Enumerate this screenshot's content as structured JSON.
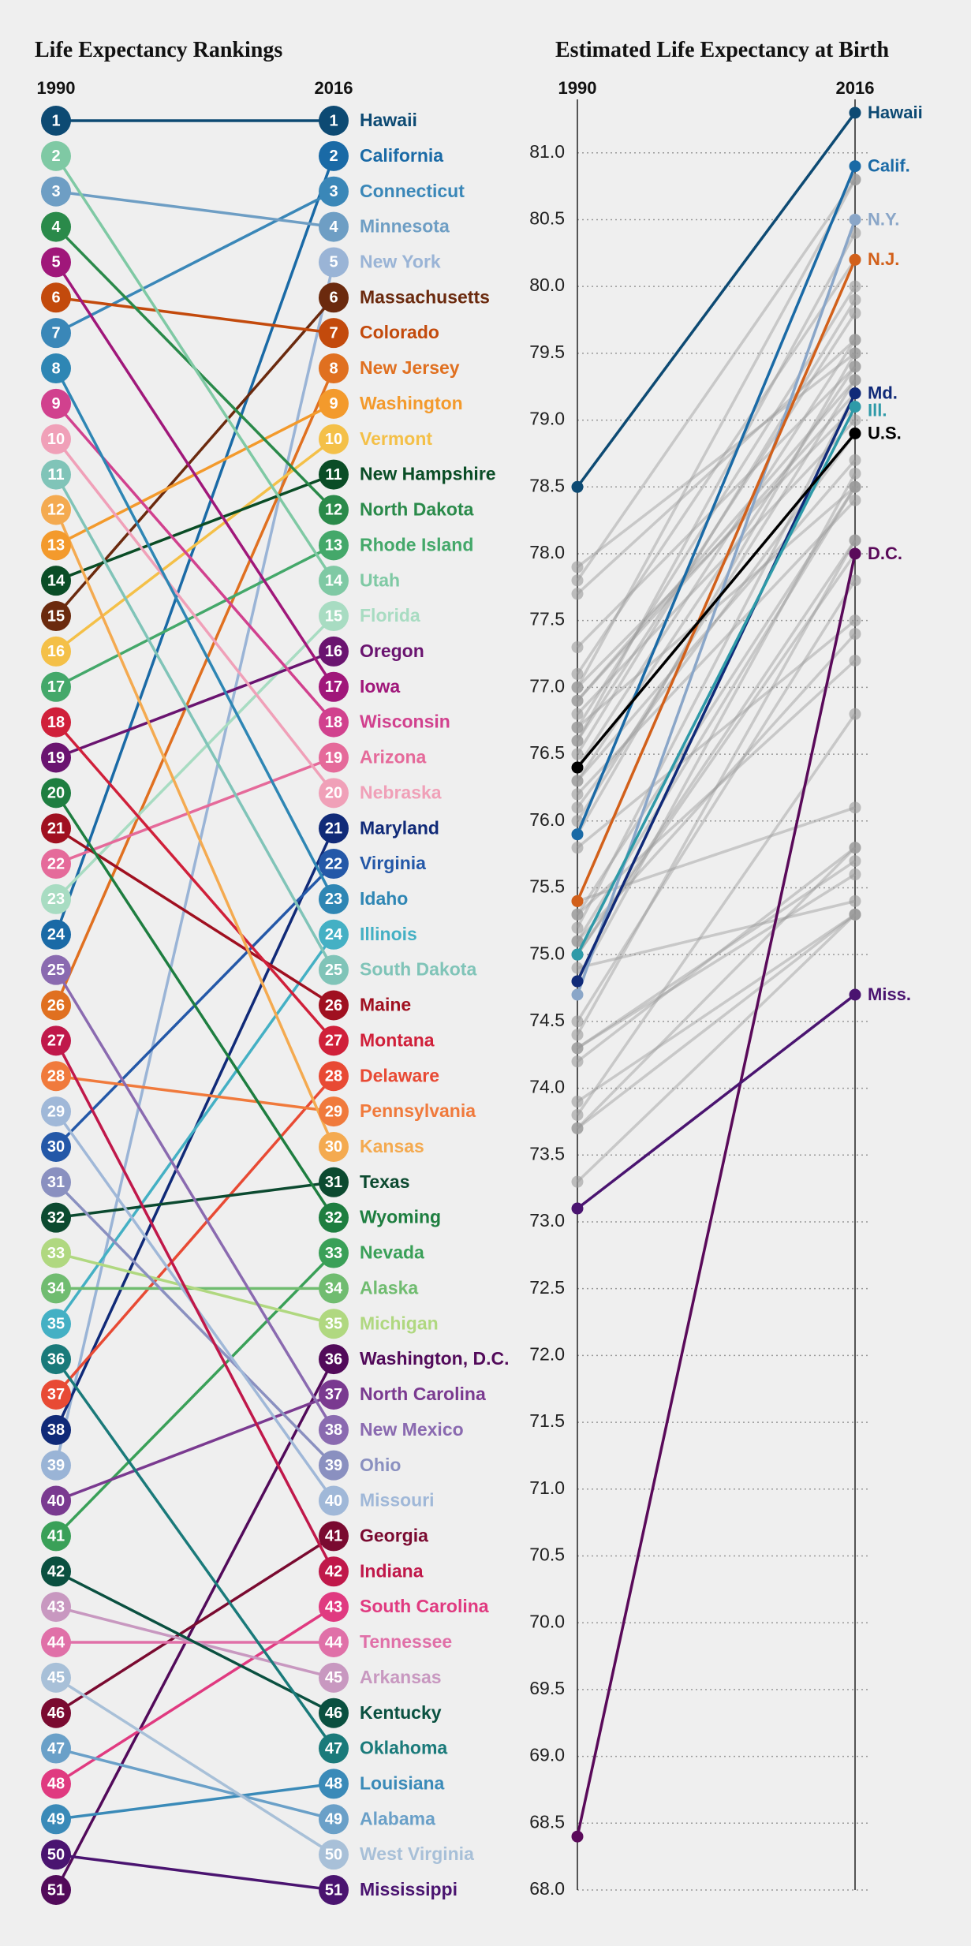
{
  "chart_data": [
    {
      "type": "bump",
      "title": "Life Expectancy Rankings",
      "categories": [
        "1990",
        "2016"
      ],
      "ylim": [
        1,
        51
      ],
      "y_inverted": true,
      "series": [
        {
          "name": "Hawaii",
          "color": "#0d4a73",
          "values": [
            1,
            1
          ]
        },
        {
          "name": "California",
          "color": "#1a6aa6",
          "values": [
            24,
            2
          ]
        },
        {
          "name": "Connecticut",
          "color": "#3a87b8",
          "values": [
            7,
            3
          ]
        },
        {
          "name": "Minnesota",
          "color": "#6e9ec4",
          "values": [
            3,
            4
          ]
        },
        {
          "name": "New York",
          "color": "#9ab4d6",
          "values": [
            39,
            5
          ]
        },
        {
          "name": "Massachusetts",
          "color": "#6b2a0e",
          "values": [
            15,
            6
          ]
        },
        {
          "name": "Colorado",
          "color": "#c34a0c",
          "values": [
            6,
            7
          ]
        },
        {
          "name": "New Jersey",
          "color": "#e07020",
          "values": [
            26,
            8
          ]
        },
        {
          "name": "Washington",
          "color": "#f39a2c",
          "values": [
            13,
            9
          ]
        },
        {
          "name": "Vermont",
          "color": "#f4c048",
          "values": [
            16,
            10
          ]
        },
        {
          "name": "New Hampshire",
          "color": "#0a4d26",
          "values": [
            14,
            11
          ]
        },
        {
          "name": "North Dakota",
          "color": "#2a8a4a",
          "values": [
            4,
            12
          ]
        },
        {
          "name": "Rhode Island",
          "color": "#44a86a",
          "values": [
            17,
            13
          ]
        },
        {
          "name": "Utah",
          "color": "#7fc9a4",
          "values": [
            2,
            14
          ]
        },
        {
          "name": "Florida",
          "color": "#a8dcc2",
          "values": [
            23,
            15
          ]
        },
        {
          "name": "Oregon",
          "color": "#6a1470",
          "values": [
            19,
            16
          ]
        },
        {
          "name": "Iowa",
          "color": "#a0177a",
          "values": [
            5,
            17
          ]
        },
        {
          "name": "Wisconsin",
          "color": "#d1418e",
          "values": [
            9,
            18
          ]
        },
        {
          "name": "Arizona",
          "color": "#e56a9a",
          "values": [
            22,
            19
          ]
        },
        {
          "name": "Nebraska",
          "color": "#f0a0b8",
          "values": [
            10,
            20
          ]
        },
        {
          "name": "Maryland",
          "color": "#102a78",
          "values": [
            38,
            21
          ]
        },
        {
          "name": "Virginia",
          "color": "#2458a8",
          "values": [
            30,
            22
          ]
        },
        {
          "name": "Idaho",
          "color": "#2e86b4",
          "values": [
            8,
            23
          ]
        },
        {
          "name": "Illinois",
          "color": "#44b0c4",
          "values": [
            35,
            24
          ]
        },
        {
          "name": "South Dakota",
          "color": "#80c4b8",
          "values": [
            11,
            25
          ]
        },
        {
          "name": "Maine",
          "color": "#a01020",
          "values": [
            21,
            26
          ]
        },
        {
          "name": "Montana",
          "color": "#d0203a",
          "values": [
            18,
            27
          ]
        },
        {
          "name": "Delaware",
          "color": "#e84a34",
          "values": [
            37,
            28
          ]
        },
        {
          "name": "Pennsylvania",
          "color": "#f07a3c",
          "values": [
            28,
            29
          ]
        },
        {
          "name": "Kansas",
          "color": "#f4aa50",
          "values": [
            12,
            30
          ]
        },
        {
          "name": "Texas",
          "color": "#0c4a30",
          "values": [
            32,
            31
          ]
        },
        {
          "name": "Wyoming",
          "color": "#1e7e40",
          "values": [
            20,
            32
          ]
        },
        {
          "name": "Nevada",
          "color": "#3aa058",
          "values": [
            41,
            33
          ]
        },
        {
          "name": "Alaska",
          "color": "#70bc70",
          "values": [
            34,
            34
          ]
        },
        {
          "name": "Michigan",
          "color": "#b0d880",
          "values": [
            33,
            35
          ]
        },
        {
          "name": "Washington, D.C.",
          "color": "#520a5a",
          "values": [
            51,
            36
          ]
        },
        {
          "name": "North Carolina",
          "color": "#7a3a90",
          "values": [
            40,
            37
          ]
        },
        {
          "name": "New Mexico",
          "color": "#8a6ab0",
          "values": [
            25,
            38
          ]
        },
        {
          "name": "Ohio",
          "color": "#8a90c0",
          "values": [
            31,
            39
          ]
        },
        {
          "name": "Missouri",
          "color": "#a0b8d8",
          "values": [
            29,
            40
          ]
        },
        {
          "name": "Georgia",
          "color": "#7a0a30",
          "values": [
            46,
            41
          ]
        },
        {
          "name": "Indiana",
          "color": "#c0184a",
          "values": [
            27,
            42
          ]
        },
        {
          "name": "South Carolina",
          "color": "#e03a80",
          "values": [
            48,
            43
          ]
        },
        {
          "name": "Tennessee",
          "color": "#e070a8",
          "values": [
            44,
            44
          ]
        },
        {
          "name": "Arkansas",
          "color": "#c898c0",
          "values": [
            43,
            45
          ]
        },
        {
          "name": "Kentucky",
          "color": "#0a5040",
          "values": [
            42,
            46
          ]
        },
        {
          "name": "Oklahoma",
          "color": "#1a7a7a",
          "values": [
            36,
            47
          ]
        },
        {
          "name": "Louisiana",
          "color": "#3a8ab8",
          "values": [
            49,
            48
          ]
        },
        {
          "name": "Alabama",
          "color": "#6aa0c8",
          "values": [
            47,
            49
          ]
        },
        {
          "name": "West Virginia",
          "color": "#a8c0d8",
          "values": [
            45,
            50
          ]
        },
        {
          "name": "Mississippi",
          "color": "#4a1470",
          "values": [
            50,
            51
          ]
        }
      ]
    },
    {
      "type": "slope",
      "title": "Estimated Life Expectancy at Birth",
      "categories": [
        "1990",
        "2016"
      ],
      "ylim": [
        68.0,
        81.4
      ],
      "grid": true,
      "yticks": [
        {
          "value": 68,
          "label": "68.0"
        },
        68.5,
        {
          "value": 69,
          "label": "69.0"
        },
        69.5,
        {
          "value": 70,
          "label": "70.0"
        },
        70.5,
        {
          "value": 71,
          "label": "71.0"
        },
        71.5,
        {
          "value": 72,
          "label": "72.0"
        },
        72.5,
        {
          "value": 73,
          "label": "73.0"
        },
        73.5,
        {
          "value": 74,
          "label": "74.0"
        },
        74.5,
        {
          "value": 75,
          "label": "75.0"
        },
        75.5,
        {
          "value": 76,
          "label": "76.0"
        },
        76.5,
        {
          "value": 77,
          "label": "77.0"
        },
        77.5,
        {
          "value": 78,
          "label": "78.0"
        },
        78.5,
        {
          "value": 79,
          "label": "79.0"
        },
        79.5,
        {
          "value": 80,
          "label": "80.0"
        },
        80.5,
        {
          "value": 81,
          "label": "81.0"
        }
      ],
      "series": [
        {
          "color": "#999999",
          "values": [
            77.0,
            80.8
          ]
        },
        {
          "color": "#999999",
          "values": [
            77.8,
            80.8
          ]
        },
        {
          "color": "#999999",
          "values": [
            76.6,
            80.4
          ]
        },
        {
          "color": "#999999",
          "values": [
            77.1,
            80.2
          ]
        },
        {
          "color": "#999999",
          "values": [
            76.7,
            80.0
          ]
        },
        {
          "color": "#999999",
          "values": [
            76.5,
            79.9
          ]
        },
        {
          "color": "#999999",
          "values": [
            76.6,
            79.8
          ]
        },
        {
          "color": "#999999",
          "values": [
            77.7,
            79.6
          ]
        },
        {
          "color": "#999999",
          "values": [
            76.4,
            79.6
          ]
        },
        {
          "color": "#999999",
          "values": [
            77.9,
            79.5
          ]
        },
        {
          "color": "#999999",
          "values": [
            75.9,
            79.5
          ]
        },
        {
          "color": "#999999",
          "values": [
            76.3,
            79.4
          ]
        },
        {
          "color": "#999999",
          "values": [
            77.3,
            79.4
          ]
        },
        {
          "color": "#999999",
          "values": [
            76.9,
            79.3
          ]
        },
        {
          "color": "#999999",
          "values": [
            76.0,
            79.3
          ]
        },
        {
          "color": "#999999",
          "values": [
            76.9,
            79.2
          ]
        },
        {
          "color": "#999999",
          "values": [
            75.2,
            79.2
          ]
        },
        {
          "color": "#999999",
          "values": [
            77.0,
            79.1
          ]
        },
        {
          "color": "#999999",
          "values": [
            76.8,
            79.0
          ]
        },
        {
          "color": "#999999",
          "values": [
            76.1,
            78.9
          ]
        },
        {
          "color": "#999999",
          "values": [
            76.3,
            78.7
          ]
        },
        {
          "color": "#999999",
          "values": [
            74.8,
            78.6
          ]
        },
        {
          "color": "#999999",
          "values": [
            75.3,
            78.5
          ]
        },
        {
          "color": "#999999",
          "values": [
            76.7,
            78.5
          ]
        },
        {
          "color": "#999999",
          "values": [
            75.1,
            78.5
          ]
        },
        {
          "color": "#999999",
          "values": [
            76.2,
            78.4
          ]
        },
        {
          "color": "#999999",
          "values": [
            74.4,
            78.1
          ]
        },
        {
          "color": "#999999",
          "values": [
            75.0,
            78.1
          ]
        },
        {
          "color": "#999999",
          "values": [
            75.0,
            78.0
          ]
        },
        {
          "color": "#999999",
          "values": [
            74.5,
            77.8
          ]
        },
        {
          "color": "#999999",
          "values": [
            75.8,
            77.5
          ]
        },
        {
          "color": "#999999",
          "values": [
            75.1,
            77.4
          ]
        },
        {
          "color": "#999999",
          "values": [
            75.3,
            77.2
          ]
        },
        {
          "color": "#999999",
          "values": [
            73.8,
            76.8
          ]
        },
        {
          "color": "#999999",
          "values": [
            75.4,
            76.1
          ]
        },
        {
          "color": "#999999",
          "values": [
            73.7,
            75.8
          ]
        },
        {
          "color": "#999999",
          "values": [
            74.2,
            75.8
          ]
        },
        {
          "color": "#999999",
          "values": [
            74.3,
            75.7
          ]
        },
        {
          "color": "#999999",
          "values": [
            74.3,
            75.6
          ]
        },
        {
          "color": "#999999",
          "values": [
            74.9,
            75.4
          ]
        },
        {
          "color": "#999999",
          "values": [
            73.3,
            75.3
          ]
        },
        {
          "color": "#999999",
          "values": [
            73.7,
            75.3
          ]
        },
        {
          "color": "#999999",
          "values": [
            73.9,
            75.3
          ]
        },
        {
          "name": "Hawaii",
          "color": "#0d4a73",
          "values": [
            78.5,
            81.3
          ]
        },
        {
          "name": "Calif.",
          "color": "#1a6aa6",
          "values": [
            75.9,
            80.9
          ]
        },
        {
          "name": "N.Y.",
          "color": "#8aa6c8",
          "values": [
            74.7,
            80.5
          ]
        },
        {
          "name": "N.J.",
          "color": "#d2601a",
          "values": [
            75.4,
            80.2
          ]
        },
        {
          "name": "Md.",
          "color": "#102a78",
          "values": [
            74.8,
            79.2
          ]
        },
        {
          "name": "Ill.",
          "color": "#2e9aa8",
          "values": [
            75.0,
            79.1
          ]
        },
        {
          "name": "U.S.",
          "color": "#000000",
          "values": [
            76.4,
            78.9
          ]
        },
        {
          "name": "D.C.",
          "color": "#5a0a5a",
          "values": [
            68.4,
            78.0
          ]
        },
        {
          "name": "Miss.",
          "color": "#4a1470",
          "values": [
            73.1,
            74.7
          ]
        }
      ]
    }
  ]
}
